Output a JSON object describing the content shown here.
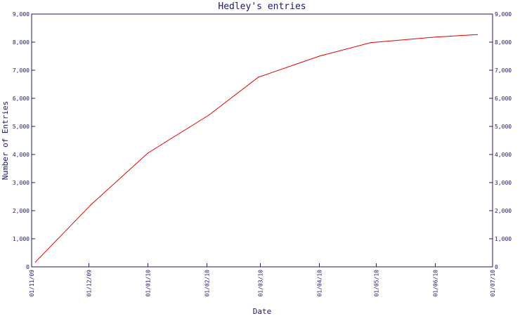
{
  "chart_data": {
    "type": "line",
    "title": "Hedley's entries",
    "xlabel": "Date",
    "ylabel": "Number of Entries",
    "x_ticks": [
      "01/11/09",
      "01/12/09",
      "01/01/10",
      "01/02/10",
      "01/03/10",
      "01/04/10",
      "01/05/10",
      "01/06/10",
      "01/07/10"
    ],
    "y_ticks": [
      "0",
      "1,000",
      "2,000",
      "3,000",
      "4,000",
      "5,000",
      "6,000",
      "7,000",
      "8,000",
      "9,000"
    ],
    "ylim": [
      0,
      9000
    ],
    "xlim": [
      "2009-11-01",
      "2010-07-01"
    ],
    "grid": false,
    "series": [
      {
        "color": "#e00000",
        "points": [
          {
            "x": "2009-11-03",
            "y": 170
          },
          {
            "x": "2009-12-02",
            "y": 2200
          },
          {
            "x": "2010-01-01",
            "y": 4050
          },
          {
            "x": "2010-02-02",
            "y": 5400
          },
          {
            "x": "2010-02-28",
            "y": 6750
          },
          {
            "x": "2010-04-01",
            "y": 7500
          },
          {
            "x": "2010-04-28",
            "y": 7980
          },
          {
            "x": "2010-06-01",
            "y": 8180
          },
          {
            "x": "2010-06-23",
            "y": 8270
          }
        ]
      }
    ],
    "colors": {
      "axis": "#1a1a6e",
      "line": "#e00000"
    }
  }
}
